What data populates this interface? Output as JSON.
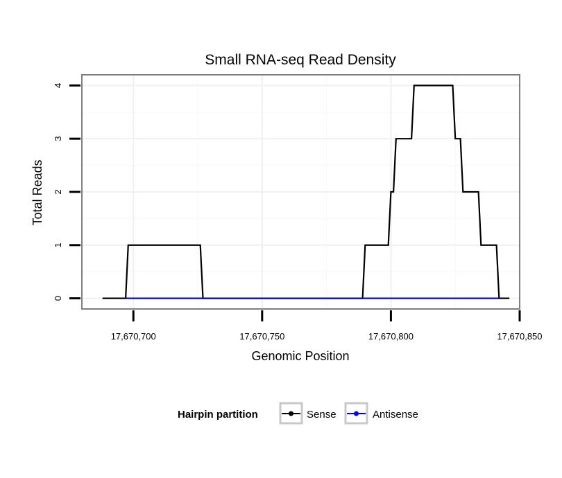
{
  "chart_data": {
    "type": "line",
    "title": "Small RNA-seq Read Density",
    "xlabel": "Genomic Position",
    "ylabel": "Total Reads",
    "xlim": [
      17670680,
      17670850
    ],
    "ylim": [
      -0.2,
      4.2
    ],
    "x_ticks": [
      17670700,
      17670750,
      17670800,
      17670850
    ],
    "x_tick_labels": [
      "17,670,700",
      "17,670,750",
      "17,670,800",
      "17,670,850"
    ],
    "y_ticks": [
      0,
      1,
      2,
      3,
      4
    ],
    "y_tick_labels": [
      "0",
      "1",
      "2",
      "3",
      "4"
    ],
    "grid": true,
    "legend": {
      "title": "Hairpin partition",
      "placement": "bottom",
      "entries": [
        "Sense",
        "Antisense"
      ]
    },
    "series": [
      {
        "name": "Sense",
        "color": "#000000",
        "x": [
          17670688,
          17670697,
          17670698,
          17670726,
          17670727,
          17670789,
          17670790,
          17670799,
          17670800,
          17670801,
          17670802,
          17670808,
          17670809,
          17670824,
          17670825,
          17670827,
          17670828,
          17670834,
          17670835,
          17670841,
          17670842,
          17670846
        ],
        "values": [
          0,
          0,
          1,
          1,
          0,
          0,
          1,
          1,
          2,
          2,
          3,
          3,
          4,
          4,
          3,
          3,
          2,
          2,
          1,
          1,
          0,
          0
        ]
      },
      {
        "name": "Antisense",
        "color": "#0000ff",
        "x": [
          17670697,
          17670842
        ],
        "values": [
          0,
          0
        ]
      }
    ]
  }
}
